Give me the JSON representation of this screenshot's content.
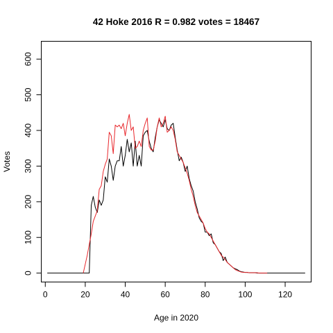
{
  "chart_data": {
    "type": "line",
    "title": "42 Hoke 2016 R = 0.982 votes = 18467",
    "xlabel": "Age in 2020",
    "ylabel": "Votes",
    "xlim": [
      -2,
      133
    ],
    "ylim": [
      -25,
      650
    ],
    "xticks": [
      0,
      20,
      40,
      60,
      80,
      100,
      120
    ],
    "yticks": [
      0,
      100,
      200,
      300,
      400,
      500,
      600
    ],
    "grid": false,
    "series": [
      {
        "color": "#000000",
        "x": [
          1,
          21,
          22,
          23,
          24,
          25,
          26,
          27,
          28,
          29,
          30,
          31,
          32,
          33,
          34,
          35,
          36,
          37,
          38,
          39,
          40,
          41,
          42,
          43,
          44,
          45,
          46,
          47,
          48,
          49,
          50,
          51,
          52,
          53,
          54,
          55,
          56,
          57,
          58,
          59,
          60,
          61,
          62,
          63,
          64,
          65,
          66,
          67,
          68,
          69,
          70,
          71,
          72,
          73,
          74,
          75,
          76,
          77,
          78,
          79,
          80,
          81,
          82,
          83,
          84,
          85,
          86,
          87,
          88,
          89,
          90,
          91,
          92,
          93,
          94,
          95,
          96,
          97,
          98,
          99,
          100,
          101,
          102,
          103,
          104,
          105,
          106,
          107,
          108,
          109,
          110,
          130
        ],
        "y": [
          0,
          0,
          0,
          190,
          215,
          185,
          170,
          205,
          190,
          205,
          270,
          255,
          320,
          300,
          260,
          300,
          315,
          315,
          355,
          300,
          330,
          375,
          340,
          365,
          300,
          370,
          300,
          330,
          300,
          385,
          395,
          400,
          370,
          350,
          340,
          380,
          410,
          430,
          420,
          410,
          430,
          405,
          400,
          415,
          420,
          380,
          345,
          315,
          325,
          310,
          285,
          300,
          265,
          245,
          230,
          200,
          180,
          155,
          145,
          140,
          115,
          115,
          105,
          110,
          85,
          80,
          70,
          60,
          55,
          35,
          45,
          30,
          25,
          20,
          15,
          12,
          10,
          6,
          4,
          3,
          2,
          2,
          1,
          1,
          1,
          1,
          0,
          0,
          0,
          0,
          0,
          0
        ]
      },
      {
        "color": "#e8262b",
        "x": [
          19,
          20,
          21,
          22,
          23,
          24,
          25,
          26,
          27,
          28,
          29,
          30,
          31,
          32,
          33,
          34,
          35,
          36,
          37,
          38,
          39,
          40,
          41,
          42,
          43,
          44,
          45,
          46,
          47,
          48,
          49,
          50,
          51,
          52,
          53,
          54,
          55,
          56,
          57,
          58,
          59,
          60,
          61,
          62,
          63,
          64,
          65,
          66,
          67,
          68,
          69,
          70,
          71,
          72,
          73,
          74,
          75,
          76,
          77,
          78,
          79,
          80,
          81,
          82,
          83,
          84,
          85,
          86,
          87,
          88,
          89,
          90,
          91,
          92,
          93,
          94,
          95,
          96,
          97,
          98,
          99,
          100,
          101,
          102,
          103,
          104,
          105,
          106,
          107,
          108,
          109,
          110,
          111
        ],
        "y": [
          0,
          25,
          50,
          80,
          110,
          145,
          160,
          175,
          235,
          245,
          285,
          305,
          320,
          395,
          385,
          335,
          415,
          410,
          415,
          405,
          420,
          385,
          420,
          445,
          400,
          410,
          350,
          355,
          370,
          355,
          400,
          420,
          435,
          355,
          345,
          345,
          370,
          410,
          435,
          410,
          420,
          440,
          395,
          400,
          410,
          400,
          375,
          340,
          330,
          320,
          310,
          295,
          280,
          260,
          235,
          215,
          190,
          170,
          160,
          150,
          140,
          125,
          115,
          110,
          100,
          90,
          80,
          70,
          60,
          50,
          45,
          38,
          30,
          25,
          20,
          15,
          10,
          7,
          5,
          3,
          2,
          2,
          2,
          1,
          1,
          1,
          1,
          1,
          0,
          0,
          0,
          0,
          0
        ]
      }
    ]
  }
}
